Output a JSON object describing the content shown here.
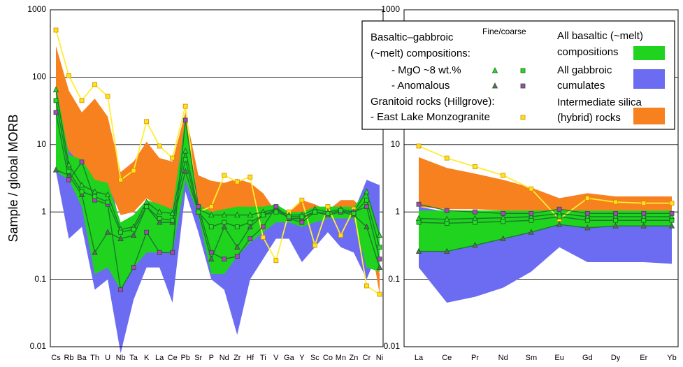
{
  "chart_data": [
    {
      "type": "line",
      "log": true,
      "ylabel": "Sample / global MORB",
      "categories": [
        "Cs",
        "Rb",
        "Ba",
        "Th",
        "U",
        "Nb",
        "Ta",
        "K",
        "La",
        "Ce",
        "Pb",
        "Sr",
        "P",
        "Nd",
        "Zr",
        "Hf",
        "Ti",
        "V",
        "Ga",
        "Y",
        "Sc",
        "Co",
        "Mn",
        "Zn",
        "Cr",
        "Ni"
      ],
      "ylim": [
        0.01,
        1000
      ],
      "yticks": [
        0.01,
        0.1,
        1,
        10,
        100,
        1000
      ],
      "grid": true,
      "bands": [
        {
          "color": "#1fd31f",
          "upper": [
            75,
            7,
            6,
            3,
            2.7,
            0.7,
            0.9,
            1.5,
            1.3,
            1.1,
            25,
            1.3,
            1.0,
            1.1,
            1.2,
            1.2,
            1.2,
            1.3,
            1.0,
            1.0,
            1.2,
            1.2,
            1.2,
            1.2,
            2.0,
            0.5
          ],
          "lower": [
            4,
            3,
            1.2,
            0.12,
            0.15,
            0.07,
            0.15,
            0.25,
            0.25,
            0.25,
            3,
            0.9,
            0.12,
            0.12,
            0.22,
            0.35,
            0.5,
            0.7,
            0.7,
            0.6,
            0.7,
            0.8,
            0.8,
            0.8,
            0.15,
            0.13
          ]
        },
        {
          "color": "#6c6cf2",
          "upper": [
            20,
            10,
            5,
            5,
            4,
            0.6,
            0.8,
            1.5,
            1.1,
            1.0,
            25,
            1.2,
            0.9,
            0.8,
            0.7,
            0.8,
            0.9,
            1.0,
            1.0,
            1.0,
            1.0,
            1.0,
            1.0,
            1.0,
            3.0,
            2.5
          ],
          "lower": [
            4,
            0.4,
            0.6,
            0.07,
            0.1,
            0.008,
            0.05,
            0.15,
            0.15,
            0.045,
            2,
            0.5,
            0.1,
            0.07,
            0.015,
            0.1,
            0.2,
            0.4,
            0.4,
            0.18,
            0.3,
            0.5,
            0.3,
            0.25,
            0.1,
            0.3
          ]
        },
        {
          "color": "#f7801f",
          "upper": [
            290,
            63,
            30,
            48,
            26,
            3.9,
            5.6,
            11,
            6.3,
            5.6,
            30,
            3.5,
            2.9,
            2.7,
            3.1,
            2.7,
            1.9,
            1.0,
            1.0,
            1.5,
            1.3,
            1.05,
            1.5,
            1.5,
            1.0,
            0.12
          ],
          "lower": [
            30,
            8,
            5,
            3,
            2.5,
            0.9,
            1.0,
            1.6,
            1.2,
            1.1,
            8,
            1.1,
            0.9,
            0.9,
            0.9,
            0.9,
            0.8,
            0.8,
            0.8,
            0.8,
            0.8,
            0.8,
            0.8,
            0.8,
            0.8,
            0.06
          ]
        }
      ],
      "series": [
        {
          "color": "#ffee33",
          "marker": "square",
          "marker_color": "#ffe21a",
          "values": [
            500,
            105,
            45,
            78,
            52,
            3.0,
            4.1,
            22,
            9.5,
            6.3,
            37,
            1.0,
            1.2,
            3.5,
            2.8,
            3.3,
            0.42,
            0.19,
            1.0,
            1.5,
            0.32,
            1.2,
            0.45,
            1.1,
            0.08,
            0.06
          ]
        },
        {
          "color": "#1b7a2c",
          "marker": "triangle",
          "marker_color": "#22dd22",
          "values": [
            65,
            5,
            2.5,
            2.0,
            1.8,
            0.55,
            0.6,
            1.4,
            1.0,
            0.95,
            8,
            1.1,
            0.9,
            0.9,
            0.9,
            0.9,
            1.0,
            1.1,
            0.9,
            0.9,
            1.1,
            1.0,
            1.1,
            1.0,
            2.0,
            0.45
          ]
        },
        {
          "color": "#1b7a2c",
          "marker": "triangle",
          "marker_color": "#666666",
          "values": [
            4.2,
            3.5,
            1.8,
            0.25,
            0.5,
            0.4,
            0.45,
            1.2,
            0.7,
            0.7,
            4,
            1.0,
            0.2,
            0.6,
            0.3,
            0.6,
            0.9,
            1.1,
            0.8,
            0.8,
            1.0,
            0.9,
            1.0,
            0.9,
            0.6,
            0.15
          ]
        },
        {
          "color": "#1b7a2c",
          "marker": "square",
          "marker_color": "#b040c0",
          "values": [
            30,
            3,
            5.5,
            1.5,
            1.3,
            0.07,
            0.15,
            0.5,
            0.25,
            0.25,
            23,
            1.2,
            0.25,
            0.2,
            0.22,
            0.4,
            0.6,
            1.2,
            0.8,
            0.7,
            1.0,
            0.9,
            1.0,
            1.0,
            1.2,
            0.2
          ]
        },
        {
          "color": "#1b7a2c",
          "marker": "square",
          "marker_color": "#22dd22",
          "values": [
            45,
            4,
            2,
            1.7,
            1.4,
            0.5,
            0.55,
            1.2,
            0.8,
            0.75,
            6,
            1.0,
            0.6,
            0.7,
            0.6,
            0.7,
            0.9,
            1.0,
            0.85,
            0.85,
            1.0,
            0.95,
            1.05,
            0.95,
            1.5,
            0.3
          ]
        }
      ]
    },
    {
      "type": "line",
      "log": true,
      "categories": [
        "La",
        "Ce",
        "Pr",
        "Nd",
        "Sm",
        "Eu",
        "Gd",
        "Dy",
        "Er",
        "Yb"
      ],
      "ylim": [
        0.01,
        1000
      ],
      "yticks": [
        0.01,
        0.1,
        1,
        10,
        100,
        1000
      ],
      "grid": true,
      "bands": [
        {
          "color": "#1fd31f",
          "upper": [
            1.05,
            1.05,
            1.05,
            1.05,
            1.05,
            1.05,
            1.05,
            1.05,
            1.05,
            1.05
          ],
          "lower": [
            0.26,
            0.26,
            0.32,
            0.4,
            0.5,
            0.65,
            0.6,
            0.62,
            0.62,
            0.62
          ]
        },
        {
          "color": "#6c6cf2",
          "upper": [
            1.2,
            1.0,
            1.0,
            1.0,
            1.0,
            1.0,
            1.0,
            1.0,
            1.0,
            1.0
          ],
          "lower": [
            0.15,
            0.045,
            0.055,
            0.075,
            0.13,
            0.3,
            0.18,
            0.18,
            0.18,
            0.17
          ]
        },
        {
          "color": "#f7801f",
          "upper": [
            6.5,
            4.5,
            3.7,
            3.0,
            2.3,
            1.6,
            1.9,
            1.7,
            1.7,
            1.7
          ],
          "lower": [
            1.2,
            1.1,
            1.1,
            1.05,
            1.05,
            1.0,
            1.05,
            1.05,
            1.05,
            1.05
          ]
        }
      ],
      "series": [
        {
          "color": "#ffee33",
          "marker": "square",
          "marker_color": "#ffe21a",
          "values": [
            9.5,
            6.3,
            4.7,
            3.5,
            2.2,
            0.78,
            1.6,
            1.4,
            1.35,
            1.35
          ]
        },
        {
          "color": "#1b7a2c",
          "marker": "triangle",
          "marker_color": "#22dd22",
          "values": [
            0.8,
            0.78,
            0.8,
            0.82,
            0.85,
            0.95,
            0.85,
            0.85,
            0.85,
            0.85
          ]
        },
        {
          "color": "#1b7a2c",
          "marker": "triangle",
          "marker_color": "#666666",
          "values": [
            0.26,
            0.26,
            0.32,
            0.4,
            0.5,
            0.65,
            0.58,
            0.62,
            0.62,
            0.62
          ]
        },
        {
          "color": "#1b7a2c",
          "marker": "square",
          "marker_color": "#b040c0",
          "values": [
            1.3,
            1.05,
            1.0,
            0.95,
            0.95,
            1.1,
            0.95,
            0.95,
            0.95,
            0.95
          ]
        },
        {
          "color": "#1b7a2c",
          "marker": "square",
          "marker_color": "#22dd22",
          "values": [
            0.7,
            0.68,
            0.7,
            0.72,
            0.75,
            0.85,
            0.75,
            0.75,
            0.75,
            0.75
          ]
        }
      ]
    }
  ],
  "legend": {
    "heading": [
      "Basaltic–gabbroic",
      "(~melt) compositions:"
    ],
    "marker_header": "Fine/coarse",
    "mgo": "- MgO ~8 wt.%",
    "anomalous": "- Anomalous",
    "granitoid": "Granitoid rocks (Hillgrove):",
    "east_lake": "- East Lake Monzogranite",
    "bands": [
      [
        "All basaltic (~melt)",
        "compositions"
      ],
      [
        "All gabbroic",
        "cumulates"
      ],
      [
        "Intermediate silica",
        "(hybrid) rocks"
      ]
    ]
  }
}
